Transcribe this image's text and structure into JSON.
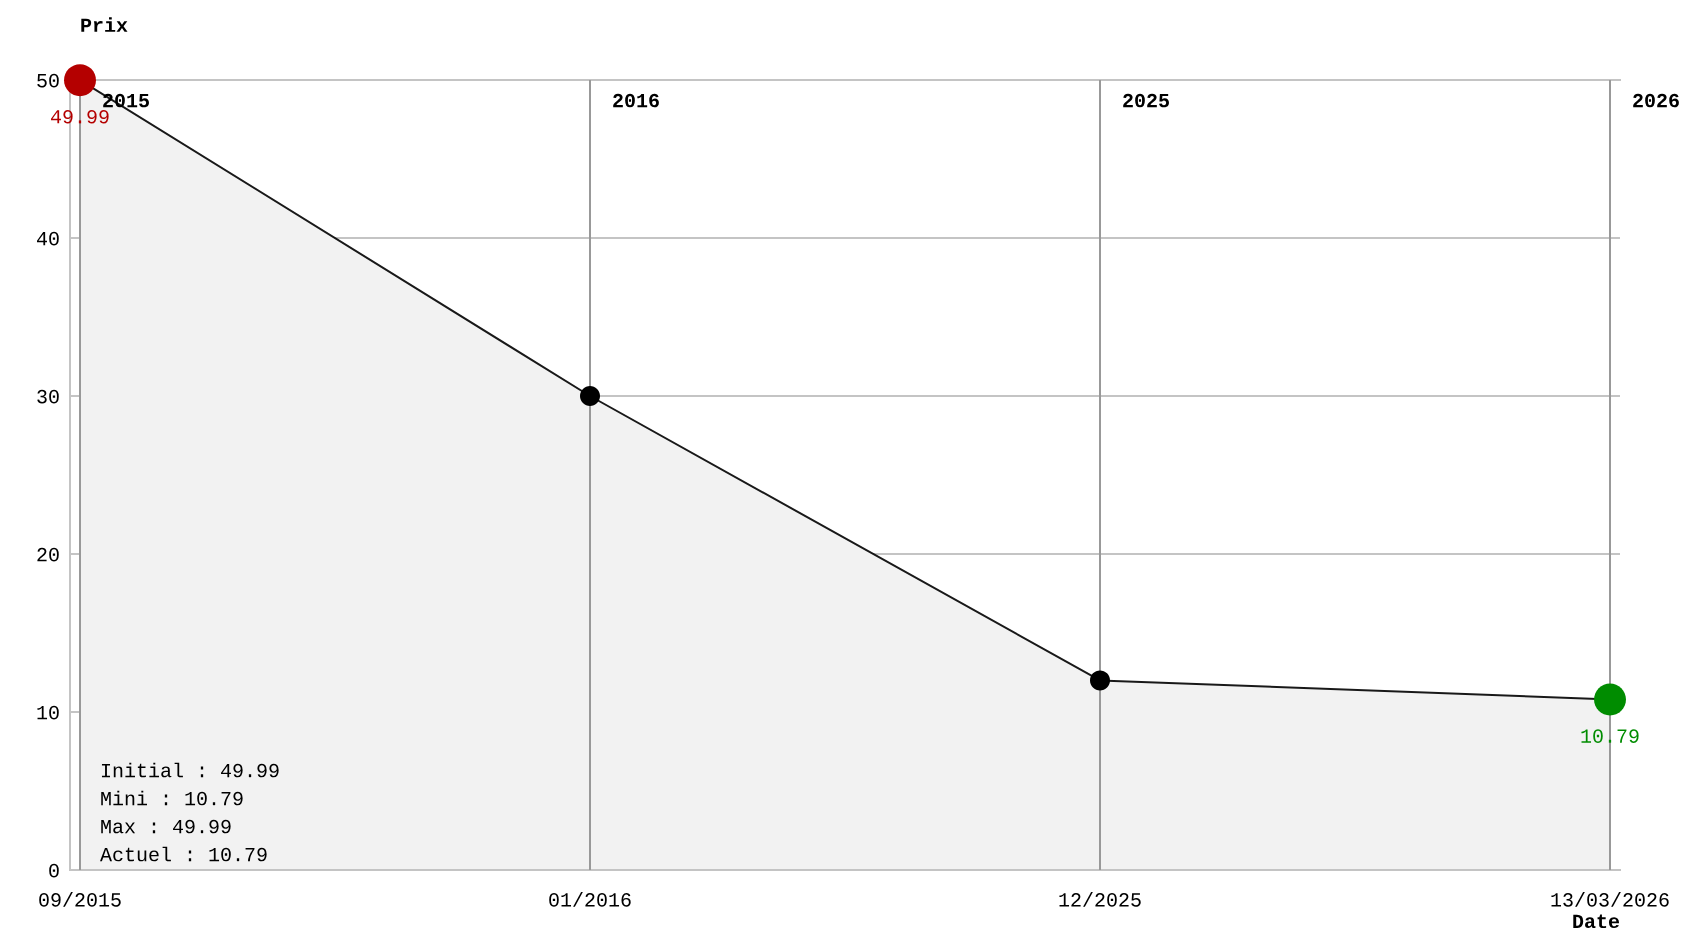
{
  "chart_data": {
    "type": "area",
    "xlabel": "Date",
    "ylabel": "Prix",
    "categories": [
      "09/2015",
      "01/2016",
      "12/2025",
      "13/03/2026"
    ],
    "values": [
      49.99,
      30,
      12,
      10.79
    ],
    "color": "#000000",
    "colors": [
      "#b40000",
      "#000000",
      "#000000",
      "#008c00"
    ],
    "value_labels": [
      "49.99",
      null,
      null,
      "10.79"
    ],
    "marker": "circle",
    "ylim": [
      0,
      50
    ],
    "yticks": [
      0,
      10,
      20,
      30,
      40,
      50
    ],
    "grid": "y",
    "ref_lines": [
      {
        "axis": "x",
        "value": "09/2015",
        "label": "2015",
        "color": "#999999"
      },
      {
        "axis": "x",
        "value": "01/2016",
        "label": "2016",
        "color": "#999999"
      },
      {
        "axis": "x",
        "value": "12/2025",
        "label": "2025",
        "color": "#999999"
      },
      {
        "axis": "x",
        "value": "13/03/2026",
        "label": "2026",
        "color": "#999999"
      }
    ],
    "annotations": [
      "Initial : 49.99",
      "Mini : 10.79",
      "Max : 49.99",
      "Actuel : 10.79"
    ]
  }
}
